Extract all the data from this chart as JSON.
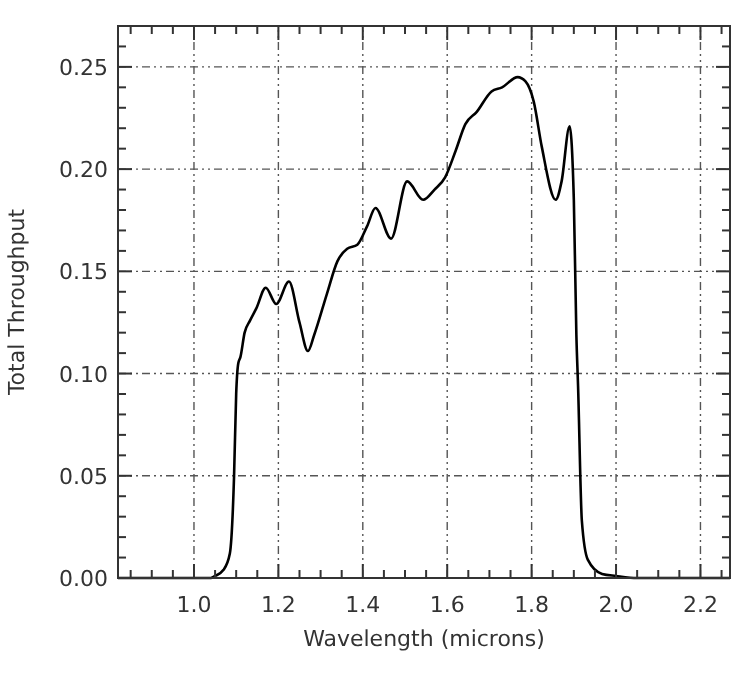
{
  "chart_data": {
    "type": "line",
    "xlabel": "Wavelength (microns)",
    "ylabel": "Total Throughput",
    "x": [
      0.82,
      1.0,
      1.04,
      1.05,
      1.07,
      1.085,
      1.095,
      1.1,
      1.105,
      1.11,
      1.12,
      1.133,
      1.148,
      1.17,
      1.195,
      1.225,
      1.25,
      1.27,
      1.285,
      1.315,
      1.34,
      1.363,
      1.387,
      1.41,
      1.43,
      1.467,
      1.505,
      1.543,
      1.57,
      1.595,
      1.62,
      1.643,
      1.67,
      1.705,
      1.73,
      1.767,
      1.785,
      1.805,
      1.824,
      1.857,
      1.871,
      1.89,
      1.9,
      1.906,
      1.91,
      1.919,
      1.933,
      1.967,
      2.0,
      2.05,
      2.27
    ],
    "series": [
      {
        "color": "#000000",
        "values": [
          0,
          0,
          0,
          0.001,
          0.004,
          0.012,
          0.05,
          0.09,
          0.105,
          0.108,
          0.12,
          0.126,
          0.132,
          0.142,
          0.134,
          0.145,
          0.125,
          0.111,
          0.119,
          0.139,
          0.155,
          0.161,
          0.163,
          0.172,
          0.181,
          0.166,
          0.194,
          0.185,
          0.19,
          0.196,
          0.209,
          0.222,
          0.228,
          0.238,
          0.24,
          0.245,
          0.243,
          0.233,
          0.211,
          0.185,
          0.194,
          0.221,
          0.185,
          0.119,
          0.094,
          0.028,
          0.009,
          0.002,
          0.001,
          0,
          0
        ]
      }
    ],
    "xlim": [
      0.82,
      2.27
    ],
    "xticks": [
      {
        "value": 0.85,
        "label": null
      },
      {
        "value": 0.9,
        "label": null
      },
      {
        "value": 0.95,
        "label": null
      },
      {
        "value": 1.0,
        "label": "1.0"
      },
      {
        "value": 1.05,
        "label": null
      },
      {
        "value": 1.1,
        "label": null
      },
      {
        "value": 1.15,
        "label": null
      },
      {
        "value": 1.2,
        "label": "1.2"
      },
      {
        "value": 1.25,
        "label": null
      },
      {
        "value": 1.3,
        "label": null
      },
      {
        "value": 1.35,
        "label": null
      },
      {
        "value": 1.4,
        "label": "1.4"
      },
      {
        "value": 1.45,
        "label": null
      },
      {
        "value": 1.5,
        "label": null
      },
      {
        "value": 1.55,
        "label": null
      },
      {
        "value": 1.6,
        "label": "1.6"
      },
      {
        "value": 1.65,
        "label": null
      },
      {
        "value": 1.7,
        "label": null
      },
      {
        "value": 1.75,
        "label": null
      },
      {
        "value": 1.8,
        "label": "1.8"
      },
      {
        "value": 1.85,
        "label": null
      },
      {
        "value": 1.9,
        "label": null
      },
      {
        "value": 1.95,
        "label": null
      },
      {
        "value": 2.0,
        "label": "2.0"
      },
      {
        "value": 2.05,
        "label": null
      },
      {
        "value": 2.1,
        "label": null
      },
      {
        "value": 2.15,
        "label": null
      },
      {
        "value": 2.2,
        "label": "2.2"
      },
      {
        "value": 2.25,
        "label": null
      }
    ],
    "ylim": [
      0,
      0.27
    ],
    "yticks": [
      {
        "value": 0,
        "label": "0.00"
      },
      {
        "value": 0.01,
        "label": null
      },
      {
        "value": 0.02,
        "label": null
      },
      {
        "value": 0.03,
        "label": null
      },
      {
        "value": 0.04,
        "label": null
      },
      {
        "value": 0.05,
        "label": "0.05"
      },
      {
        "value": 0.06,
        "label": null
      },
      {
        "value": 0.07,
        "label": null
      },
      {
        "value": 0.08,
        "label": null
      },
      {
        "value": 0.09,
        "label": null
      },
      {
        "value": 0.1,
        "label": "0.10"
      },
      {
        "value": 0.11,
        "label": null
      },
      {
        "value": 0.12,
        "label": null
      },
      {
        "value": 0.13,
        "label": null
      },
      {
        "value": 0.14,
        "label": null
      },
      {
        "value": 0.15,
        "label": "0.15"
      },
      {
        "value": 0.16,
        "label": null
      },
      {
        "value": 0.17,
        "label": null
      },
      {
        "value": 0.18,
        "label": null
      },
      {
        "value": 0.19,
        "label": null
      },
      {
        "value": 0.2,
        "label": "0.20"
      },
      {
        "value": 0.21,
        "label": null
      },
      {
        "value": 0.22,
        "label": null
      },
      {
        "value": 0.23,
        "label": null
      },
      {
        "value": 0.24,
        "label": null
      },
      {
        "value": 0.25,
        "label": "0.25"
      },
      {
        "value": 0.26,
        "label": null
      }
    ],
    "grid": true,
    "line_style": "solid",
    "marker": "none"
  }
}
